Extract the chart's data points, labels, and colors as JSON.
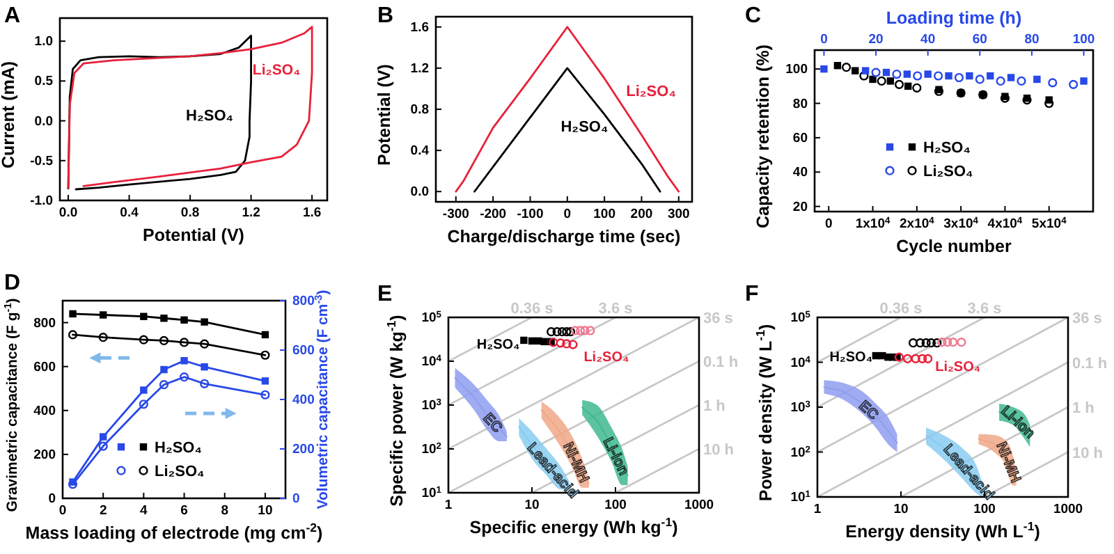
{
  "chart_data": [
    {
      "type": "line",
      "title": "A",
      "xlabel": "Potential (V)",
      "ylabel": "Current (mA)",
      "xlim": [
        -0.055,
        1.7
      ],
      "xticks": [
        {
          "value": 0,
          "label": "0.0"
        },
        0.4,
        0.8,
        1.2,
        1.6
      ],
      "ylim": [
        -1.0,
        1.29
      ],
      "yticks": [
        {
          "value": -1,
          "label": "-1.0"
        },
        -0.5,
        {
          "value": 0,
          "label": "0.0"
        },
        0.5,
        {
          "value": 1,
          "label": "1.0"
        }
      ],
      "legend": false,
      "series": [
        {
          "name": "H₂SO₄",
          "color": "#000000",
          "x": [
            0,
            0.01,
            0.03,
            0.08,
            0.2,
            0.4,
            0.6,
            0.8,
            1.0,
            1.12,
            1.2,
            1.2,
            1.19,
            1.19,
            1.16,
            1.1,
            1.0,
            0.8,
            0.4,
            0.2,
            0.05
          ],
          "values": [
            -0.85,
            0.3,
            0.65,
            0.76,
            0.8,
            0.81,
            0.8,
            0.81,
            0.84,
            0.92,
            1.07,
            0.5,
            0.0,
            -0.2,
            -0.5,
            -0.64,
            -0.68,
            -0.73,
            -0.8,
            -0.84,
            -0.86
          ]
        },
        {
          "name": "Li₂SO₄",
          "color": "#e8203a",
          "x": [
            0,
            0.01,
            0.04,
            0.1,
            0.3,
            0.6,
            0.8,
            1.0,
            1.2,
            1.4,
            1.55,
            1.6,
            1.6,
            1.58,
            1.5,
            1.4,
            1.2,
            1.0,
            0.6,
            0.3,
            0.1
          ],
          "values": [
            -0.84,
            0.2,
            0.6,
            0.72,
            0.76,
            0.79,
            0.81,
            0.85,
            0.9,
            0.98,
            1.1,
            1.18,
            0.6,
            0.0,
            -0.3,
            -0.45,
            -0.52,
            -0.6,
            -0.7,
            -0.77,
            -0.82
          ]
        }
      ]
    },
    {
      "type": "line",
      "title": "B",
      "xlabel": "Charge/discharge time (sec)",
      "ylabel": "Potential (V)",
      "xlim": [
        -354,
        336
      ],
      "xticks": [
        -300,
        -200,
        -100,
        0,
        100,
        200,
        300
      ],
      "ylim": [
        -0.1,
        1.7
      ],
      "yticks": [
        {
          "value": 0,
          "label": "0.0"
        },
        0.4,
        0.8,
        1.2,
        1.6
      ],
      "legend": false,
      "series": [
        {
          "name": "Li₂SO₄",
          "color": "#e8203a",
          "x": [
            -300,
            -280,
            -200,
            -100,
            0,
            50,
            100,
            200,
            270,
            300
          ],
          "values": [
            0,
            0.1,
            0.62,
            1.1,
            1.6,
            1.35,
            1.1,
            0.55,
            0.15,
            0
          ]
        },
        {
          "name": "H₂SO₄",
          "color": "#000000",
          "x": [
            -250,
            0,
            100,
            200,
            250
          ],
          "values": [
            0,
            1.2,
            0.75,
            0.27,
            0
          ]
        }
      ]
    },
    {
      "type": "scatter",
      "title": "C",
      "xlabel": "Cycle number",
      "ylabel": "Capacity retention (%)",
      "x2label": "Loading time (h)",
      "xlim": [
        -3200,
        60000
      ],
      "xticks": [
        0,
        {
          "value": 10000,
          "label": "1x10$^{4}$"
        },
        {
          "value": 20000,
          "label": "2x10$^{4}$"
        },
        {
          "value": 30000,
          "label": "3x10$^{4}$"
        },
        {
          "value": 40000,
          "label": "4x10$^{4}$"
        },
        {
          "value": 50000,
          "label": "5x10$^{4}$"
        }
      ],
      "x2lim": [
        -3.6,
        103.6
      ],
      "x2ticks": [
        0,
        20,
        40,
        60,
        80,
        100
      ],
      "ylim": [
        17,
        111
      ],
      "yticks": [
        20,
        40,
        60,
        80,
        100
      ],
      "legend": "center",
      "series": [
        {
          "name": "H₂SO₄",
          "color": "#000000",
          "marker": "square",
          "x": [
            2000,
            6000,
            10000,
            14000,
            18000,
            25000,
            30000,
            35000,
            40000,
            45000,
            50000
          ],
          "values": [
            102,
            99,
            94,
            93,
            90,
            88,
            86,
            85,
            84,
            83,
            82
          ]
        },
        {
          "name": "Li₂SO₄",
          "color": "#000000",
          "marker": "circle",
          "x": [
            4000,
            8000,
            12000,
            16000,
            20000,
            25000,
            30000,
            35000,
            40000,
            45000,
            50000
          ],
          "values": [
            101,
            96,
            93,
            91,
            89,
            87,
            86,
            85,
            83,
            82,
            80
          ]
        },
        {
          "color": "#2848e8",
          "marker": "square",
          "axis": "x2",
          "x": [
            0,
            16,
            24,
            32,
            40,
            48,
            56,
            64,
            72,
            82,
            100
          ],
          "values": [
            100,
            99,
            98,
            97,
            97,
            96,
            96,
            96,
            95,
            94,
            93
          ]
        },
        {
          "color": "#2848e8",
          "marker": "circle",
          "axis": "x2",
          "x": [
            20,
            28,
            36,
            44,
            52,
            60,
            68,
            76,
            88,
            96
          ],
          "values": [
            98,
            97,
            96,
            96,
            95,
            94,
            93,
            93,
            92,
            91
          ]
        }
      ]
    },
    {
      "type": "line",
      "title": "D",
      "xlabel": "Mass loading of electrode (mg cm$^{-2}$)",
      "ylabel": "Gravimetric capacitance (F g$^{-1}$)",
      "y2label": "Volumetric capacitance (F cm$^{-3}$)",
      "xlim": [
        0,
        11
      ],
      "xticks": [
        0,
        2,
        4,
        6,
        8,
        10
      ],
      "ylim": [
        0,
        900
      ],
      "yticks": [
        0,
        200,
        400,
        600,
        800
      ],
      "y2lim": [
        0,
        800
      ],
      "y2ticks": [
        0,
        200,
        400,
        600,
        800
      ],
      "legend": "bottom",
      "x": [
        0.5,
        2,
        4,
        5,
        6,
        7,
        10
      ],
      "series": [
        {
          "name": "H₂SO₄",
          "color": "#000000",
          "marker": "square",
          "values": [
            840,
            835,
            828,
            820,
            812,
            803,
            745
          ]
        },
        {
          "name": "Li₂SO₄",
          "color": "#000000",
          "marker": "circle",
          "values": [
            745,
            733,
            722,
            718,
            710,
            703,
            652
          ]
        },
        {
          "color": "#2848e8",
          "marker": "square",
          "axis": "y2",
          "values": [
            66,
            249,
            438,
            521,
            557,
            532,
            475
          ]
        },
        {
          "color": "#2848e8",
          "marker": "circle",
          "axis": "y2",
          "values": [
            57,
            211,
            381,
            460,
            491,
            464,
            419
          ]
        }
      ]
    },
    {
      "type": "scatter",
      "title": "E",
      "xlabel": "Specific energy (Wh kg$^{-1}$)",
      "ylabel": "Specific power (W kg$^{-1}$)",
      "log": "xy",
      "xlim": [
        1,
        1000
      ],
      "xticks": [
        1,
        10,
        100,
        1000
      ],
      "ylim": [
        10,
        100000
      ],
      "yticks": [
        {
          "value": 10,
          "label": "10$^{1}$"
        },
        {
          "value": 100,
          "label": "10$^{2}$"
        },
        {
          "value": 1000,
          "label": "10$^{3}$"
        },
        {
          "value": 10000,
          "label": "10$^{4}$"
        },
        {
          "value": 100000,
          "label": "10$^{5}$"
        }
      ],
      "legend": false,
      "series": [
        {
          "name": "0.36 s",
          "type": "line",
          "color": "#c8c8c8",
          "x": [
            1,
            10
          ],
          "values": [
            10000,
            100000
          ]
        },
        {
          "name": "3.6 s",
          "type": "line",
          "color": "#c8c8c8",
          "x": [
            1,
            100
          ],
          "values": [
            1000,
            100000
          ]
        },
        {
          "name": "36 s",
          "type": "line",
          "color": "#c8c8c8",
          "x": [
            1,
            1000
          ],
          "values": [
            100,
            100000
          ]
        },
        {
          "name": "0.1 h",
          "type": "line",
          "color": "#c8c8c8",
          "x": [
            1,
            1000
          ],
          "values": [
            10,
            10000
          ]
        },
        {
          "name": "1 h",
          "type": "line",
          "color": "#c8c8c8",
          "x": [
            10,
            1000
          ],
          "values": [
            10,
            1000
          ]
        },
        {
          "name": "10 h",
          "type": "line",
          "color": "#c8c8c8",
          "x": [
            100,
            1000
          ],
          "values": [
            10,
            100
          ]
        },
        {
          "name": "EC",
          "type": "line",
          "color": "#8e9ef0",
          "x": [
            1.2,
            2,
            3,
            4,
            5
          ],
          "lower": [
            2500,
            800,
            250,
            150,
            150
          ],
          "upper": [
            7000,
            3000,
            1200,
            600,
            250
          ],
          "values": [
            4200,
            1550,
            550,
            300,
            190
          ]
        },
        {
          "name": "Lead-acid",
          "type": "line",
          "color": "#88ccf0",
          "x": [
            7,
            10,
            15,
            22,
            28
          ],
          "lower": [
            200,
            60,
            25,
            12,
            12
          ],
          "upper": [
            500,
            250,
            100,
            40,
            18
          ],
          "values": [
            320,
            120,
            50,
            22,
            15
          ]
        },
        {
          "name": "Ni-MH",
          "type": "line",
          "color": "#f0a888",
          "x": [
            13,
            20,
            30,
            40,
            48
          ],
          "lower": [
            500,
            150,
            40,
            13,
            13
          ],
          "upper": [
            1200,
            600,
            200,
            60,
            20
          ],
          "values": [
            780,
            300,
            90,
            28,
            16
          ]
        },
        {
          "name": "Li-ion",
          "type": "line",
          "color": "#40b890",
          "x": [
            40,
            60,
            90,
            120,
            140
          ],
          "lower": [
            600,
            200,
            50,
            15,
            15
          ],
          "upper": [
            1300,
            1000,
            300,
            100,
            40
          ],
          "values": [
            880,
            450,
            120,
            40,
            25
          ]
        },
        {
          "name": "H₂SO₄",
          "color": "#000000",
          "marker": "square",
          "x": [
            8,
            10,
            12,
            14,
            17
          ],
          "values": [
            30000,
            29000,
            29000,
            28000,
            28000
          ]
        },
        {
          "color": "#000000",
          "marker": "circle",
          "x": [
            17,
            20,
            23,
            26,
            29
          ],
          "values": [
            47000,
            47000,
            47000,
            47000,
            47000
          ]
        },
        {
          "name": "Li₂SO₄",
          "color": "#e8203a",
          "marker": "circle",
          "x": [
            18,
            22,
            26,
            31
          ],
          "values": [
            27000,
            26000,
            25000,
            24000
          ]
        },
        {
          "color": "#f07890",
          "marker": "circle",
          "x": [
            33,
            38,
            43,
            50
          ],
          "values": [
            50000,
            50000,
            50000,
            50000
          ]
        }
      ]
    },
    {
      "type": "scatter",
      "title": "F",
      "xlabel": "Energy density (Wh L$^{-1}$)",
      "ylabel": "Power density (W L$^{-1}$)",
      "log": "xy",
      "xlim": [
        1,
        1000
      ],
      "xticks": [
        1,
        10,
        100,
        1000
      ],
      "ylim": [
        10,
        100000
      ],
      "yticks": [
        {
          "value": 10,
          "label": "10$^{1}$"
        },
        {
          "value": 100,
          "label": "10$^{2}$"
        },
        {
          "value": 1000,
          "label": "10$^{3}$"
        },
        {
          "value": 10000,
          "label": "10$^{4}$"
        },
        {
          "value": 100000,
          "label": "10$^{5}$"
        }
      ],
      "legend": false,
      "series": [
        {
          "name": "0.36 s",
          "type": "line",
          "color": "#c8c8c8",
          "x": [
            1,
            10
          ],
          "values": [
            10000,
            100000
          ]
        },
        {
          "name": "3.6 s",
          "type": "line",
          "color": "#c8c8c8",
          "x": [
            1,
            100
          ],
          "values": [
            1000,
            100000
          ]
        },
        {
          "name": "36 s",
          "type": "line",
          "color": "#c8c8c8",
          "x": [
            1,
            1000
          ],
          "values": [
            100,
            100000
          ]
        },
        {
          "name": "0.1 h",
          "type": "line",
          "color": "#c8c8c8",
          "x": [
            1,
            1000
          ],
          "values": [
            10,
            10000
          ]
        },
        {
          "name": "1 h",
          "type": "line",
          "color": "#c8c8c8",
          "x": [
            10,
            1000
          ],
          "values": [
            10,
            1000
          ]
        },
        {
          "name": "10 h",
          "type": "line",
          "color": "#c8c8c8",
          "x": [
            100,
            1000
          ],
          "values": [
            10,
            100
          ]
        },
        {
          "name": "EC",
          "type": "line",
          "color": "#8e9ef0",
          "x": [
            1.2,
            2,
            3.5,
            5,
            7,
            9
          ],
          "lower": [
            2000,
            1500,
            700,
            350,
            150,
            100
          ],
          "upper": [
            4000,
            3500,
            2200,
            1200,
            600,
            250
          ],
          "values": [
            2800,
            2300,
            1200,
            650,
            300,
            160
          ]
        },
        {
          "name": "Lead-acid",
          "type": "line",
          "color": "#88ccf0",
          "x": [
            20,
            35,
            55,
            80,
            95
          ],
          "lower": [
            150,
            60,
            25,
            12,
            10
          ],
          "upper": [
            350,
            220,
            120,
            50,
            20
          ],
          "values": [
            230,
            115,
            55,
            25,
            14
          ]
        },
        {
          "name": "Ni-MH",
          "type": "line",
          "color": "#f0a888",
          "x": [
            85,
            130,
            180,
            220,
            240
          ],
          "lower": [
            150,
            100,
            50,
            18,
            18
          ],
          "upper": [
            250,
            240,
            180,
            80,
            30
          ],
          "values": [
            195,
            155,
            95,
            38,
            23
          ]
        },
        {
          "name": "Li-ion",
          "type": "line",
          "color": "#40b890",
          "x": [
            150,
            220,
            300,
            350
          ],
          "lower": [
            500,
            400,
            200,
            130
          ],
          "upper": [
            1200,
            1000,
            700,
            400
          ],
          "values": [
            780,
            630,
            370,
            230
          ]
        },
        {
          "name": "H₂SO₄",
          "color": "#000000",
          "marker": "square",
          "x": [
            5,
            6,
            7,
            8,
            9
          ],
          "values": [
            14000,
            14000,
            13000,
            13000,
            13000
          ]
        },
        {
          "color": "#000000",
          "marker": "circle",
          "x": [
            14,
            17,
            20,
            23,
            27
          ],
          "values": [
            27000,
            27000,
            27000,
            27000,
            27000
          ]
        },
        {
          "name": "Li₂SO₄",
          "color": "#e8203a",
          "marker": "circle",
          "x": [
            9.5,
            12,
            15,
            18,
            21
          ],
          "values": [
            13000,
            12000,
            12000,
            12000,
            12000
          ]
        },
        {
          "color": "#f07890",
          "marker": "circle",
          "x": [
            31,
            36,
            42,
            53
          ],
          "values": [
            28000,
            28000,
            28000,
            28000
          ]
        }
      ]
    }
  ]
}
